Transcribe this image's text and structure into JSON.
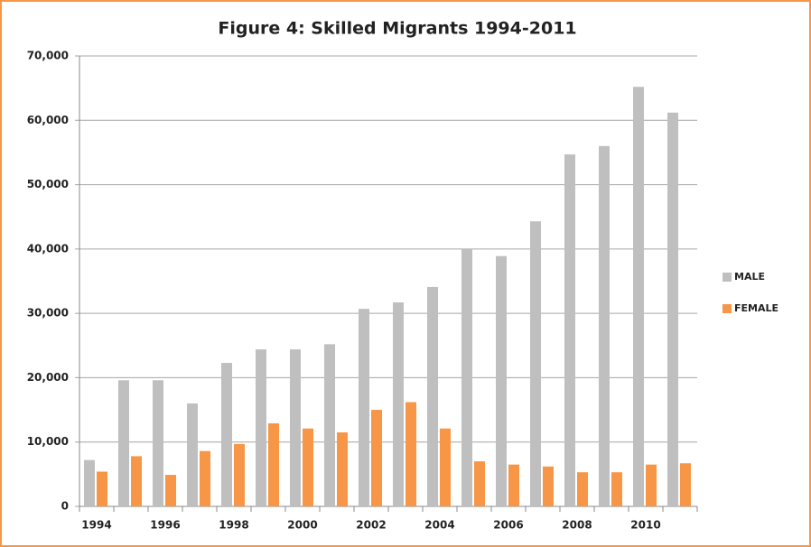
{
  "chart_data": {
    "type": "bar",
    "title": "Figure 4: Skilled Migrants 1994-2011",
    "categories": [
      "1994",
      null,
      "1996",
      null,
      "1998",
      null,
      "2000",
      null,
      "2002",
      null,
      "2004",
      null,
      "2006",
      null,
      "2008",
      null,
      "2010",
      null
    ],
    "series": [
      {
        "name": "MALE",
        "color": "#bfbfbf",
        "values": [
          7200,
          19600,
          19600,
          16000,
          22300,
          24400,
          24400,
          25200,
          30700,
          31700,
          34100,
          40000,
          38900,
          44300,
          54700,
          56000,
          65200,
          61200
        ]
      },
      {
        "name": "FEMALE",
        "color": "#f79646",
        "values": [
          5400,
          7800,
          4900,
          8600,
          9700,
          12900,
          12100,
          11500,
          15000,
          16200,
          12100,
          7000,
          6500,
          6200,
          5300,
          5300,
          6500,
          6700
        ]
      }
    ],
    "ylim": [
      0,
      70000
    ],
    "yticks": [
      0,
      {
        "value": 10000,
        "label": "10,000"
      },
      {
        "value": 20000,
        "label": "20,000"
      },
      {
        "value": 30000,
        "label": "30,000"
      },
      {
        "value": 40000,
        "label": "40,000"
      },
      {
        "value": 50000,
        "label": "50,000"
      },
      {
        "value": 60000,
        "label": "60,000"
      },
      {
        "value": 70000,
        "label": "70,000"
      }
    ],
    "grid": true,
    "legend": "right"
  }
}
